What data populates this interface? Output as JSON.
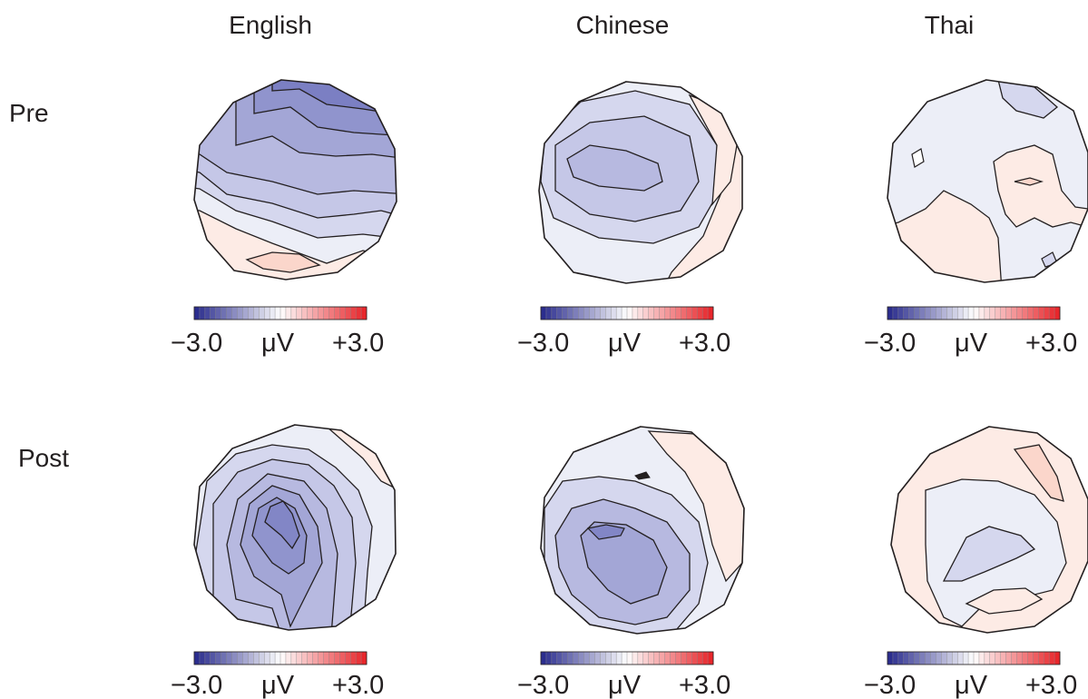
{
  "columns": [
    {
      "key": "english",
      "label": "English"
    },
    {
      "key": "chinese",
      "label": "Chinese"
    },
    {
      "key": "thai",
      "label": "Thai"
    }
  ],
  "rows": [
    {
      "key": "pre",
      "label": "Pre"
    },
    {
      "key": "post",
      "label": "Post"
    }
  ],
  "colorbar": {
    "min_label": "−3.0",
    "unit_label": "μV",
    "max_label": "+3.0",
    "min": -3.0,
    "max": 3.0,
    "low_color": "#2b2d8e",
    "mid_color": "#ffffff",
    "high_color": "#e8262b",
    "steps": 32
  },
  "colors": {
    "outline": "#231f20",
    "neg_strong": "#7b7fc3",
    "neg_mid": "#9a9dd2",
    "neg_light": "#b7b9e0",
    "neg_faint": "#d5d7ee",
    "neg_pale": "#eceef7",
    "pos_faint": "#fdebe5",
    "pos_light": "#fbd6cb"
  }
}
